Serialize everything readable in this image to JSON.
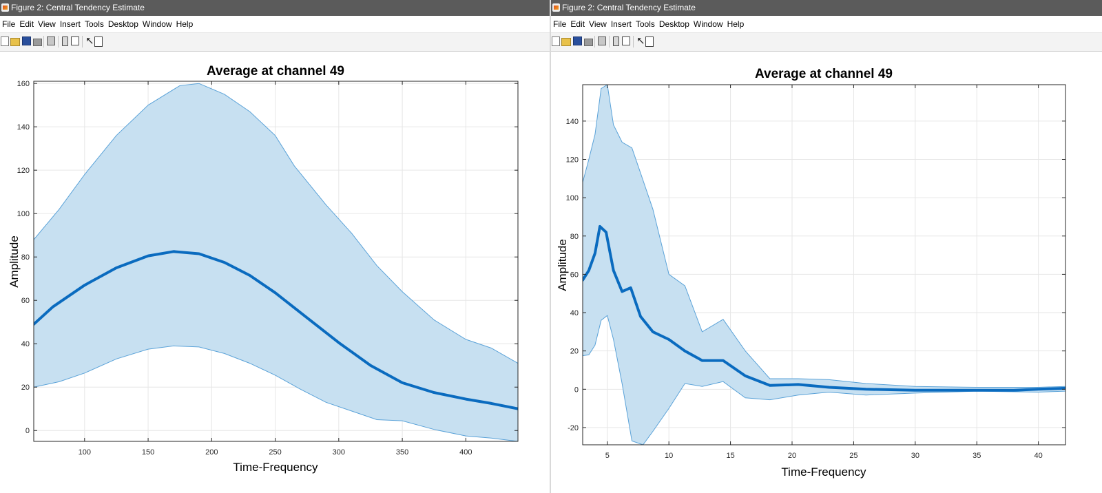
{
  "windows": [
    {
      "title": "Figure 2: Central Tendency Estimate",
      "menu": [
        "File",
        "Edit",
        "View",
        "Insert",
        "Tools",
        "Desktop",
        "Window",
        "Help"
      ]
    },
    {
      "title": "Figure 2: Central Tendency Estimate",
      "menu": [
        "File",
        "Edit",
        "View",
        "Insert",
        "Tools",
        "Desktop",
        "Window",
        "Help"
      ]
    }
  ],
  "colors": {
    "line": "#0a6bbf",
    "band_fill": "#c7e0f1",
    "band_edge": "#5aa2d8",
    "grid": "#e6e6e6",
    "titlebar": "#5b5b5b"
  },
  "chart_data": [
    {
      "type": "line",
      "title": "Average at channel 49",
      "xlabel": "Time-Frequency",
      "ylabel": "Amplitude",
      "xlim": [
        60,
        441
      ],
      "ylim": [
        -5,
        161
      ],
      "xticks": [
        100,
        150,
        200,
        250,
        300,
        350,
        400
      ],
      "yticks": [
        0,
        20,
        40,
        60,
        80,
        100,
        120,
        140,
        160
      ],
      "grid": true,
      "series": [
        {
          "role": "mean",
          "x": [
            60,
            75,
            100,
            125,
            150,
            170,
            190,
            210,
            230,
            250,
            275,
            300,
            325,
            350,
            375,
            400,
            420,
            441
          ],
          "y": [
            49,
            57,
            67,
            75,
            80.5,
            82.5,
            81.5,
            77.5,
            71.5,
            63.5,
            52,
            40.5,
            30,
            22,
            17.5,
            14.5,
            12.5,
            10
          ]
        },
        {
          "role": "upper_bound",
          "x": [
            60,
            80,
            100,
            125,
            150,
            175,
            190,
            210,
            230,
            250,
            265,
            290,
            310,
            330,
            350,
            375,
            400,
            420,
            441
          ],
          "y": [
            88,
            102,
            118,
            136,
            150,
            159,
            160,
            155,
            147,
            136,
            122,
            104,
            91,
            76,
            64,
            51,
            42,
            38,
            31
          ]
        },
        {
          "role": "lower_bound",
          "x": [
            60,
            80,
            100,
            125,
            150,
            170,
            190,
            210,
            230,
            250,
            270,
            290,
            310,
            330,
            350,
            375,
            400,
            420,
            441
          ],
          "y": [
            20,
            22.5,
            26.5,
            33,
            37.5,
            39,
            38.5,
            35.5,
            31,
            25.5,
            19,
            13,
            9,
            5,
            4.5,
            0.5,
            -2.5,
            -3.5,
            -5
          ]
        }
      ]
    },
    {
      "type": "line",
      "title": "Average at channel 49",
      "xlabel": "Time-Frequency",
      "ylabel": "Amplitude",
      "xlim": [
        3,
        42.2
      ],
      "ylim": [
        -29,
        159
      ],
      "xticks": [
        5,
        10,
        15,
        20,
        25,
        30,
        35,
        40
      ],
      "yticks": [
        -20,
        0,
        20,
        40,
        60,
        80,
        100,
        120,
        140
      ],
      "grid": true,
      "series": [
        {
          "role": "mean",
          "x": [
            3,
            3.5,
            4,
            4.4,
            4.9,
            5.5,
            6.2,
            6.9,
            7.7,
            8.7,
            10,
            11.3,
            12.7,
            14.4,
            16.2,
            18.2,
            20.5,
            23,
            26,
            30,
            35,
            38,
            40,
            42.2
          ],
          "y": [
            57,
            62,
            71,
            85,
            82,
            62,
            51,
            53,
            38,
            30,
            26,
            20,
            15,
            15,
            7,
            2,
            2.5,
            1,
            0,
            -0.5,
            -0.5,
            -0.5,
            0,
            0.5
          ]
        },
        {
          "role": "upper_bound",
          "x": [
            3,
            3.5,
            4,
            4.5,
            5,
            5.5,
            6.2,
            7,
            7.8,
            8.7,
            10,
            11.3,
            12.7,
            14.4,
            16.2,
            18.2,
            20.5,
            23,
            26,
            30,
            35,
            40,
            42.2
          ],
          "y": [
            108,
            120,
            133,
            157,
            159,
            138,
            129,
            126,
            111,
            94,
            60,
            54,
            30,
            36.5,
            20,
            5.5,
            5.5,
            5,
            3,
            1.5,
            1,
            1,
            1.5
          ]
        },
        {
          "role": "lower_bound",
          "x": [
            3,
            3.5,
            4,
            4.5,
            5,
            5.5,
            6.2,
            7,
            7.9,
            8.7,
            10,
            11.3,
            12.7,
            14.4,
            16.2,
            18.2,
            20.5,
            23,
            26,
            30,
            35,
            40,
            42.2
          ],
          "y": [
            17.5,
            18,
            23,
            36,
            38.5,
            26,
            3,
            -27,
            -29,
            -22,
            -10,
            3,
            1.5,
            4,
            -4.5,
            -5.5,
            -3,
            -1.5,
            -3,
            -2,
            -1,
            -1.5,
            -1
          ]
        }
      ]
    }
  ]
}
